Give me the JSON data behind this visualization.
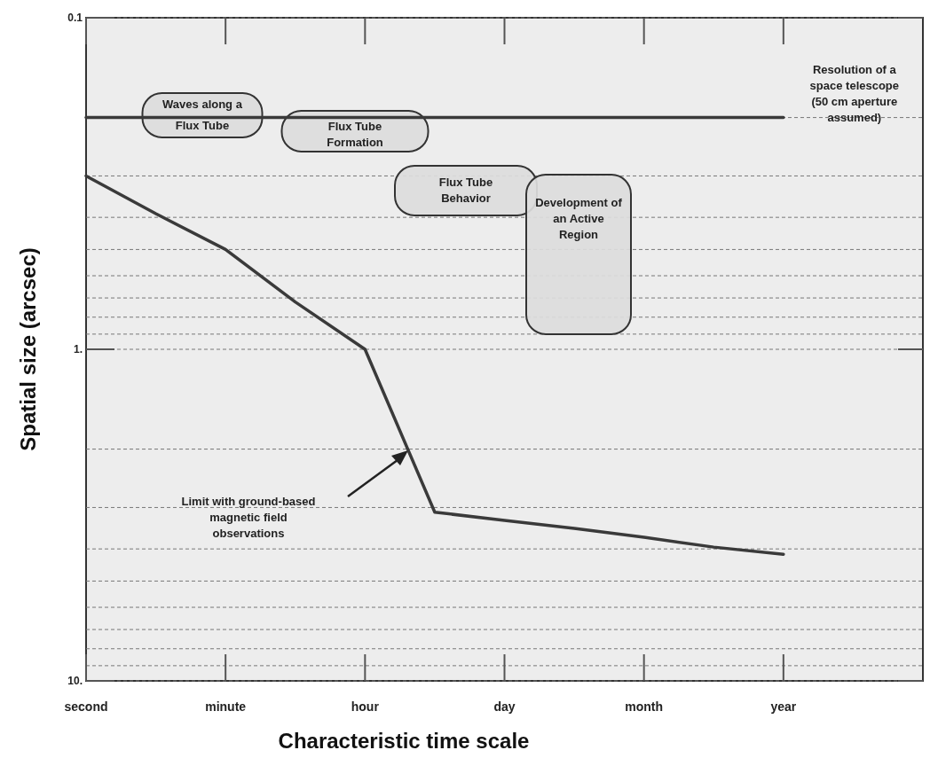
{
  "chart_data": {
    "type": "line",
    "xlabel": "Characteristic time scale",
    "ylabel": "Spatial size (arcsec)",
    "log": "y",
    "grid": "y",
    "marker": "none",
    "line_style": "solid",
    "categories": [
      "second",
      null,
      "minute",
      null,
      "hour",
      null,
      "day",
      null,
      "month",
      null,
      "year",
      null,
      null
    ],
    "ylim": [
      10,
      0.1
    ],
    "yticks": [
      {
        "value": 0.1,
        "label": "0.1"
      },
      {
        "value": 0.2,
        "label": null
      },
      {
        "value": 0.3,
        "label": null
      },
      {
        "value": 0.4,
        "label": null
      },
      {
        "value": 0.5,
        "label": null
      },
      {
        "value": 0.6,
        "label": null
      },
      {
        "value": 0.7,
        "label": null
      },
      {
        "value": 0.8,
        "label": null
      },
      {
        "value": 0.9,
        "label": null
      },
      {
        "value": 1,
        "label": "1."
      },
      {
        "value": 2,
        "label": null
      },
      {
        "value": 3,
        "label": null
      },
      {
        "value": 4,
        "label": null
      },
      {
        "value": 5,
        "label": null
      },
      {
        "value": 6,
        "label": null
      },
      {
        "value": 7,
        "label": null
      },
      {
        "value": 8,
        "label": null
      },
      {
        "value": 9,
        "label": null
      },
      {
        "value": 10,
        "label": "10."
      }
    ],
    "series": [
      {
        "color": "#3a3a3a",
        "values": [
          0.3,
          0.39,
          0.5,
          0.72,
          1.0,
          3.1,
          3.28,
          3.47,
          3.69,
          3.95,
          4.15,
          null,
          null
        ]
      },
      {
        "name": "Resolution of a space telescope (50 cm aperture assumed)",
        "color": "#3a3a3a",
        "values": [
          0.2,
          0.2,
          0.2,
          0.2,
          0.2,
          0.2,
          0.2,
          0.2,
          0.2,
          0.2,
          0.2,
          null,
          null
        ]
      }
    ],
    "annotations": [
      "Waves along a Flux Tube",
      "Flux Tube Formation",
      "Flux Tube Behavior",
      "Development of an Active Region",
      "Limit with ground-based magnetic field observations"
    ]
  }
}
